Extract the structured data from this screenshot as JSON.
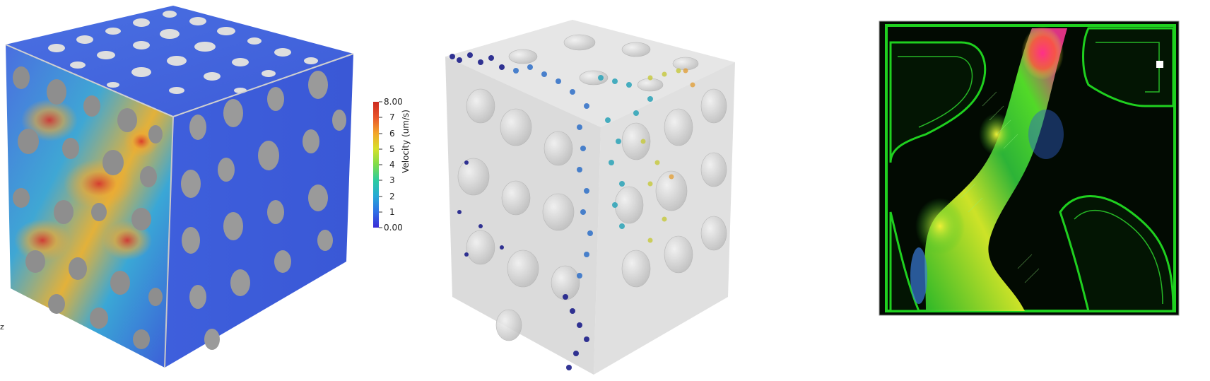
{
  "colorbar": {
    "title": "Velocity (um/s)",
    "min": 0.0,
    "max": 8.0,
    "ticks": [
      "8.00",
      "7",
      "6",
      "5",
      "4",
      "3",
      "2",
      "1",
      "0.00"
    ],
    "colors": [
      "#3b2bd6",
      "#2f6fe6",
      "#27a9d6",
      "#2bcca0",
      "#7ddc4a",
      "#d6e02a",
      "#f3a52a",
      "#e8542a",
      "#cc2a1f"
    ]
  },
  "axis_label": "z",
  "panels": {
    "left": "velocity-field-cube",
    "middle": "bubble-cluster-cube",
    "right": "flow-field-cross-section"
  }
}
